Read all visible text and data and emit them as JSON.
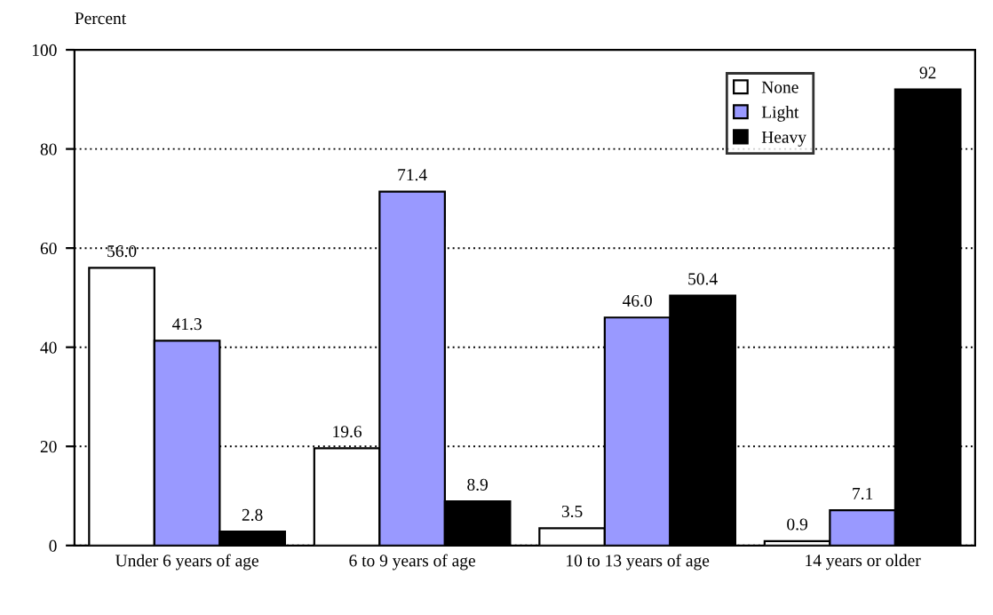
{
  "chart_data": {
    "type": "bar",
    "ylabel": "Percent",
    "categories": [
      "Under 6 years of age",
      "6 to 9 years of age",
      "10 to 13 years of age",
      "14 years or older"
    ],
    "series": [
      {
        "name": "None",
        "color": "#ffffff",
        "values": [
          56.0,
          19.6,
          3.5,
          0.9
        ],
        "value_labels": [
          "56.0",
          "19.6",
          "3.5",
          "0.9"
        ]
      },
      {
        "name": "Light",
        "color": "#9999ff",
        "values": [
          41.3,
          71.4,
          46.0,
          7.1
        ],
        "value_labels": [
          "41.3",
          "71.4",
          "46.0",
          "7.1"
        ]
      },
      {
        "name": "Heavy",
        "color": "#000000",
        "values": [
          2.8,
          8.9,
          50.4,
          92
        ],
        "value_labels": [
          "2.8",
          "8.9",
          "50.4",
          "92"
        ]
      }
    ],
    "ylim": [
      0,
      100
    ],
    "yticks": [
      0,
      20,
      40,
      60,
      80,
      100
    ],
    "grid": "y",
    "legend": "top right"
  }
}
